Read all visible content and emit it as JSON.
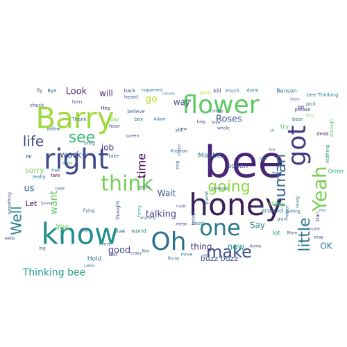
{
  "word_cloud": {
    "words": [
      {
        "text": "bee",
        "color": "#482576"
      },
      {
        "text": "honey",
        "color": "#3b1f5a"
      },
      {
        "text": "know",
        "color": "#21908d"
      },
      {
        "text": "Barry",
        "color": "#9fda3a"
      },
      {
        "text": "flower",
        "color": "#5ec962"
      },
      {
        "text": "right",
        "color": "#3e4a89"
      },
      {
        "text": "Oh",
        "color": "#2d708e"
      },
      {
        "text": "think",
        "color": "#73d055"
      },
      {
        "text": "one",
        "color": "#287c8e"
      },
      {
        "text": "make",
        "color": "#3b518b"
      },
      {
        "text": "got",
        "color": "#453781"
      },
      {
        "text": "Yeah",
        "color": "#7ad151"
      },
      {
        "text": "human",
        "color": "#31668e"
      },
      {
        "text": "little",
        "color": "#2a788e"
      },
      {
        "text": "going",
        "color": "#8fd744"
      },
      {
        "text": "see",
        "color": "#38b977"
      },
      {
        "text": "life",
        "color": "#3f4788"
      },
      {
        "text": "Well",
        "color": "#277f8e"
      },
      {
        "text": "Thinking bee",
        "color": "#1fa088"
      },
      {
        "text": "talking",
        "color": "#404387"
      },
      {
        "text": "Look",
        "color": "#482878"
      },
      {
        "text": "will",
        "color": "#472d7b"
      },
      {
        "text": "go",
        "color": "#b5de2b"
      },
      {
        "text": "way",
        "color": "#3e4c8a"
      },
      {
        "text": "Roses",
        "color": "#3b528b"
      },
      {
        "text": "job",
        "color": "#443983"
      },
      {
        "text": "work",
        "color": "#3d4e8a"
      },
      {
        "text": "sorry",
        "color": "#7ad151"
      },
      {
        "text": "time",
        "color": "#440154"
      },
      {
        "text": "want",
        "color": "#5ec962"
      },
      {
        "text": "us",
        "color": "#31688e"
      },
      {
        "text": "Let",
        "color": "#440154"
      },
      {
        "text": "Yes",
        "color": "#6ccd5a"
      },
      {
        "text": "Wait",
        "color": "#39568c"
      },
      {
        "text": "good",
        "color": "#3f4889"
      },
      {
        "text": "thing",
        "color": "#46327e"
      },
      {
        "text": "now",
        "color": "#1f9a8a"
      },
      {
        "text": "Say",
        "color": "#24868e"
      },
      {
        "text": "OK",
        "color": "#2c728e"
      },
      {
        "text": "Maybe",
        "color": "#31688e"
      },
      {
        "text": "pollen",
        "color": "#3a548c"
      },
      {
        "text": "buzz buzz",
        "color": "#3b528b"
      },
      {
        "text": "sting",
        "color": "#6ece58"
      },
      {
        "text": "lot",
        "color": "#1f9e89"
      },
      {
        "text": "around",
        "color": "#2a788e"
      },
      {
        "text": "Hold",
        "color": "#2a788e"
      },
      {
        "text": "need",
        "color": "#2c718e"
      },
      {
        "text": "world",
        "color": "#287d8e"
      },
      {
        "text": "live",
        "color": "#2d708e"
      },
      {
        "text": "last",
        "color": "#433e85"
      },
      {
        "text": "try",
        "color": "#5ec962"
      },
      {
        "text": "bit",
        "color": "#482475"
      },
      {
        "text": "done",
        "color": "#2a788e"
      },
      {
        "text": "much",
        "color": "#31688e"
      },
      {
        "text": "kill",
        "color": "#443a83"
      },
      {
        "text": "Benson",
        "color": "#2e6f8e"
      },
      {
        "text": "bee Thinking",
        "color": "#26828e"
      },
      {
        "text": "pick",
        "color": "#2a768e"
      },
      {
        "text": "please",
        "color": "#3b528b"
      },
      {
        "text": "bear",
        "color": "#2d718e"
      },
      {
        "text": "dead",
        "color": "#481b6d"
      },
      {
        "text": "enough",
        "color": "#5ec962"
      },
      {
        "text": "nothing",
        "color": "#21918c"
      },
      {
        "text": "Order",
        "color": "#35b779"
      },
      {
        "text": "Dan",
        "color": "#404588"
      },
      {
        "text": "back",
        "color": "#3e4c8a"
      },
      {
        "text": "heard",
        "color": "#355f8d"
      },
      {
        "text": "happened",
        "color": "#2a788e"
      },
      {
        "text": "Hey",
        "color": "#440154"
      },
      {
        "text": "believe",
        "color": "#3b528b"
      },
      {
        "text": "boy",
        "color": "#31688e"
      },
      {
        "text": "Adam",
        "color": "#2a788e"
      },
      {
        "text": "Thank",
        "color": "#2d708e"
      },
      {
        "text": "hear",
        "color": "#3e4c8a"
      },
      {
        "text": "day",
        "color": "#7ad151"
      },
      {
        "text": "turn",
        "color": "#3b528b"
      },
      {
        "text": "two",
        "color": "#440154"
      },
      {
        "text": "free",
        "color": "#2a788e"
      },
      {
        "text": "really",
        "color": "#2a788e"
      },
      {
        "text": "case",
        "color": "#31688e"
      },
      {
        "text": "Mr",
        "color": "#3b528b"
      },
      {
        "text": "check",
        "color": "#3e4c8a"
      },
      {
        "text": "fly",
        "color": "#3e4c8a"
      },
      {
        "text": "Bye",
        "color": "#31688e"
      },
      {
        "text": "yellow",
        "color": "#3b528b"
      },
      {
        "text": "take",
        "color": "#2a788e"
      },
      {
        "text": "funny",
        "color": "#22a884"
      },
      {
        "text": "thought",
        "color": "#3b528b"
      },
      {
        "text": "gotta",
        "color": "#2d708e"
      },
      {
        "text": "stop",
        "color": "#31688e"
      },
      {
        "text": "made",
        "color": "#3e4c8a"
      },
      {
        "text": "plane",
        "color": "#2d708e"
      },
      {
        "text": "Vanessa",
        "color": "#2a788e"
      },
      {
        "text": "put",
        "color": "#3b528b"
      },
      {
        "text": "new",
        "color": "#3b528b"
      },
      {
        "text": "help",
        "color": "#3e4c8a"
      },
      {
        "text": "hive",
        "color": "#3b528b"
      },
      {
        "text": "whole",
        "color": "#3e4c8a"
      },
      {
        "text": "great",
        "color": "#b5de2b"
      },
      {
        "text": "mean",
        "color": "#3b528b"
      },
      {
        "text": "move",
        "color": "#2d708e"
      },
      {
        "text": "crazy",
        "color": "#3e4c8a"
      },
      {
        "text": "every",
        "color": "#31688e"
      },
      {
        "text": "guy",
        "color": "#3e4c8a"
      },
      {
        "text": "Hello",
        "color": "#3e4c8a"
      },
      {
        "text": "something",
        "color": "#3b528b"
      },
      {
        "text": "flying",
        "color": "#3b528b"
      },
      {
        "text": "Ken",
        "color": "#2d708e"
      },
      {
        "text": "florist",
        "color": "#2a788e"
      },
      {
        "text": "sure",
        "color": "#3b528b"
      },
      {
        "text": "home",
        "color": "#3e4c8a"
      },
      {
        "text": "Mom",
        "color": "#3b528b"
      },
      {
        "text": "never",
        "color": "#2a788e"
      },
      {
        "text": "ready",
        "color": "#2a788e"
      },
      {
        "text": "giant",
        "color": "#31688e"
      },
      {
        "text": "getting",
        "color": "#2d708e"
      },
      {
        "text": "trouble",
        "color": "#3b528b"
      },
      {
        "text": "snap",
        "color": "#3b528b"
      },
      {
        "text": "queen",
        "color": "#3b528b"
      },
      {
        "text": "anything",
        "color": "#3b528b"
      },
      {
        "text": "call",
        "color": "#31688e"
      },
      {
        "text": "today",
        "color": "#3e4c8a"
      },
      {
        "text": "coming",
        "color": "#3b528b"
      },
      {
        "text": "nectar",
        "color": "#3b528b"
      },
      {
        "text": "bring",
        "color": "#31688e"
      },
      {
        "text": "big",
        "color": "#3e4c8a"
      },
      {
        "text": "minute",
        "color": "#2a788e"
      },
      {
        "text": "Krelman",
        "color": "#2d708e"
      },
      {
        "text": "girl",
        "color": "#2a788e"
      },
      {
        "text": "fine",
        "color": "#3b528b"
      },
      {
        "text": "sir",
        "color": "#3b528b"
      },
      {
        "text": "idea",
        "color": "#3b528b"
      },
      {
        "text": "man",
        "color": "#2a788e"
      },
      {
        "text": "start",
        "color": "#2d708e"
      },
      {
        "text": "first",
        "color": "#7ad151"
      },
      {
        "text": "leave",
        "color": "#3b528b"
      },
      {
        "text": "stinger",
        "color": "#3b528b"
      },
      {
        "text": "Ladies",
        "color": "#2a788e"
      },
      {
        "text": "wings",
        "color": "#2a788e"
      },
      {
        "text": "Gonna",
        "color": "#3e4c8a"
      }
    ]
  }
}
